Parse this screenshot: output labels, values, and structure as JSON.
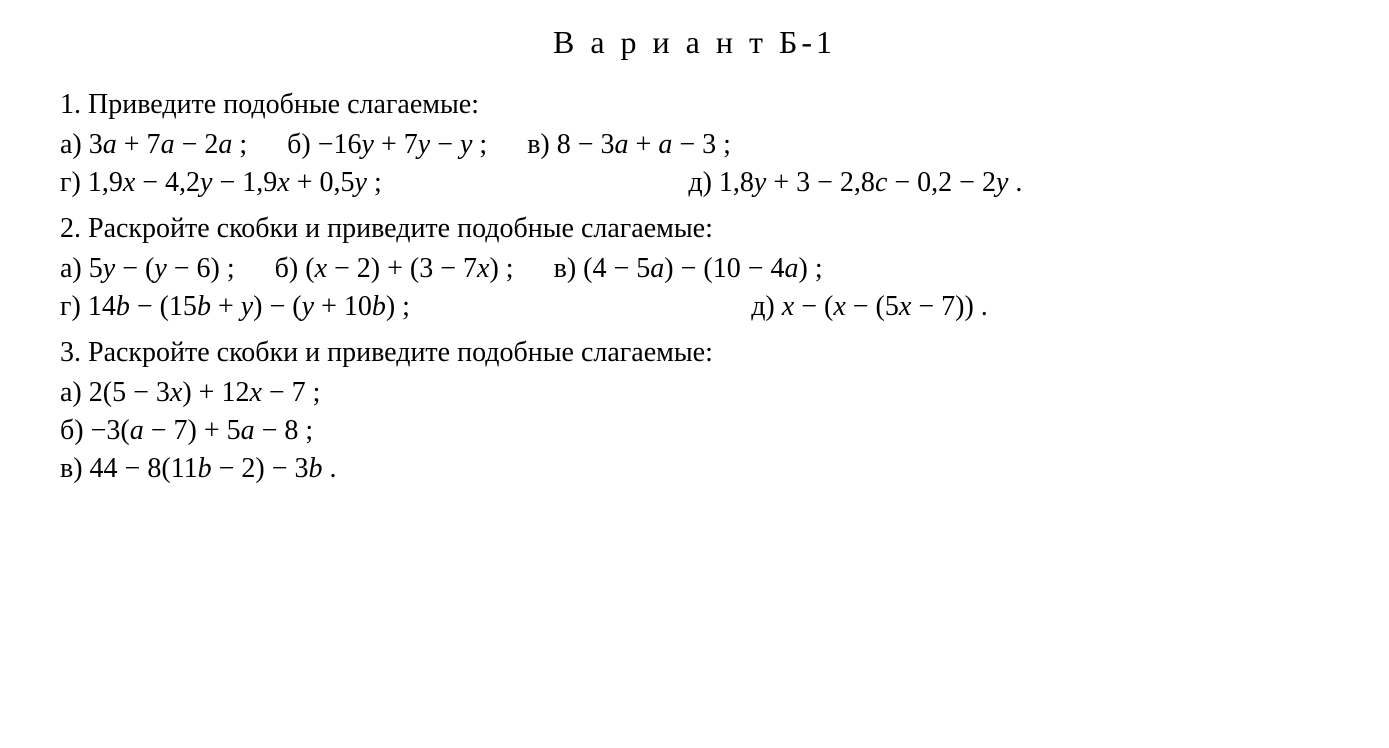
{
  "page": {
    "background_color": "#ffffff",
    "text_color": "#000000",
    "font_family": "Times New Roman, serif",
    "title_fontsize": 32,
    "body_fontsize": 28,
    "title_letter_spacing": 4
  },
  "title": "В а р и а н т  Б-1",
  "tasks": [
    {
      "number": "1.",
      "prompt": "Приведите подобные слагаемые:",
      "rows": [
        [
          {
            "label": "а)",
            "expr_html": "3<i>a</i> + 7<i>a</i> − 2<i>a</i> ;"
          },
          {
            "label": "б)",
            "expr_html": "−16<i>y</i> + 7<i>y</i> − <i>y</i> ;"
          },
          {
            "label": "в)",
            "expr_html": "8 − 3<i>a</i> + <i>a</i> − 3 ;"
          }
        ],
        [
          {
            "label": "г)",
            "expr_html": "1,9<i>x</i> − 4,2<i>y</i> − 1,9<i>x</i> + 0,5<i>y</i> ;"
          },
          {
            "label": "д)",
            "expr_html": "1,8<i>y</i> + 3 − 2,8<i>c</i> − 0,2 − 2<i>y</i> ."
          }
        ]
      ]
    },
    {
      "number": "2.",
      "prompt": "Раскройте скобки и приведите подобные слагаемые:",
      "rows": [
        [
          {
            "label": "а)",
            "expr_html": "5<i>y</i> − (<i>y</i> − 6) ;"
          },
          {
            "label": "б)",
            "expr_html": "(<i>x</i> − 2) + (3 − 7<i>x</i>) ;"
          },
          {
            "label": "в)",
            "expr_html": "(4 − 5<i>a</i>) − (10 − 4<i>a</i>) ;"
          }
        ],
        [
          {
            "label": "г)",
            "expr_html": "14<i>b</i> − (15<i>b</i> + <i>y</i>) − (<i>y</i> + 10<i>b</i>) ;"
          },
          {
            "label": "д)",
            "expr_html": "<i>x</i> − (<i>x</i> − (5<i>x</i> − 7)) ."
          }
        ]
      ]
    },
    {
      "number": "3.",
      "prompt": "Раскройте скобки и приведите подобные слагаемые:",
      "vertical": true,
      "rows": [
        [
          {
            "label": "а)",
            "expr_html": "2(5 − 3<i>x</i>) + 12<i>x</i> − 7 ;"
          }
        ],
        [
          {
            "label": "б)",
            "expr_html": "−3(<i>a</i> − 7) + 5<i>a</i> − 8 ;"
          }
        ],
        [
          {
            "label": "в)",
            "expr_html": "44 − 8(11<i>b</i> − 2) − 3<i>b</i> ."
          }
        ]
      ]
    }
  ]
}
